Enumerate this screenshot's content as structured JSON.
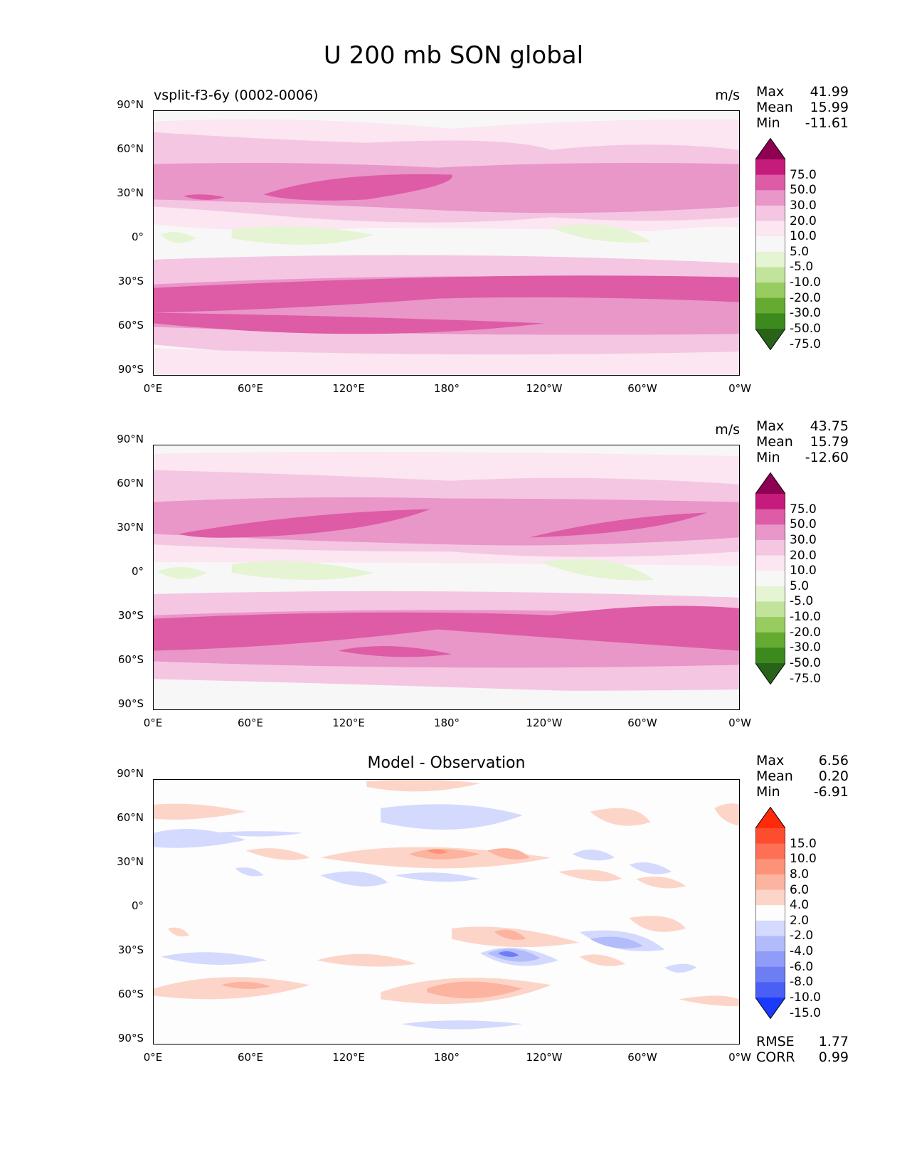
{
  "title": "U 200 mb SON global",
  "axes": {
    "x_ticks": [
      "0°E",
      "60°E",
      "120°E",
      "180°",
      "120°W",
      "60°W",
      "0°W"
    ],
    "y_ticks": [
      "90°N",
      "60°N",
      "30°N",
      "0°",
      "30°S",
      "60°S",
      "90°S"
    ]
  },
  "panels": [
    {
      "left_title": "vsplit-f3-6y (0002-0006)",
      "center_title": "",
      "units": "m/s",
      "stats": [
        {
          "label": "Max",
          "value": "41.99"
        },
        {
          "label": "Mean",
          "value": "15.99"
        },
        {
          "label": "Min",
          "value": "-11.61"
        }
      ],
      "colorbar": {
        "labels": [
          "75.0",
          "50.0",
          "30.0",
          "20.0",
          "10.0",
          "5.0",
          "-5.0",
          "-10.0",
          "-20.0",
          "-30.0",
          "-50.0",
          "-75.0"
        ],
        "colors": [
          "#8e0152",
          "#c51b7d",
          "#de5ba6",
          "#e996c8",
          "#f4c6e2",
          "#fbe6f1",
          "#f7f7f7",
          "#e5f4d2",
          "#c1e39c",
          "#99cc60",
          "#65ab32",
          "#3c8a1e",
          "#27641a"
        ]
      },
      "extra": []
    },
    {
      "left_title": "",
      "center_title": "",
      "units": "m/s",
      "stats": [
        {
          "label": "Max",
          "value": "43.75"
        },
        {
          "label": "Mean",
          "value": "15.79"
        },
        {
          "label": "Min",
          "value": "-12.60"
        }
      ],
      "colorbar": {
        "labels": [
          "75.0",
          "50.0",
          "30.0",
          "20.0",
          "10.0",
          "5.0",
          "-5.0",
          "-10.0",
          "-20.0",
          "-30.0",
          "-50.0",
          "-75.0"
        ],
        "colors": [
          "#8e0152",
          "#c51b7d",
          "#de5ba6",
          "#e996c8",
          "#f4c6e2",
          "#fbe6f1",
          "#f7f7f7",
          "#e5f4d2",
          "#c1e39c",
          "#99cc60",
          "#65ab32",
          "#3c8a1e",
          "#27641a"
        ]
      },
      "extra": []
    },
    {
      "left_title": "",
      "center_title": "Model - Observation",
      "units": "",
      "stats": [
        {
          "label": "Max",
          "value": "6.56"
        },
        {
          "label": "Mean",
          "value": "0.20"
        },
        {
          "label": "Min",
          "value": "-6.91"
        }
      ],
      "colorbar": {
        "labels": [
          "15.0",
          "10.0",
          "8.0",
          "6.0",
          "4.0",
          "2.0",
          "-2.0",
          "-4.0",
          "-6.0",
          "-8.0",
          "-10.0",
          "-15.0"
        ],
        "colors": [
          "#ff2a0a",
          "#fe4d2e",
          "#fd7055",
          "#fc9378",
          "#fcb39f",
          "#fdd5c8",
          "#fdfdfd",
          "#d4dafd",
          "#b2bcfb",
          "#8f9cf8",
          "#6d7ef5",
          "#4a5ff3",
          "#1a3afe"
        ]
      },
      "extra": [
        {
          "label": "RMSE",
          "value": "1.77"
        },
        {
          "label": "CORR",
          "value": "0.99"
        }
      ]
    }
  ]
}
